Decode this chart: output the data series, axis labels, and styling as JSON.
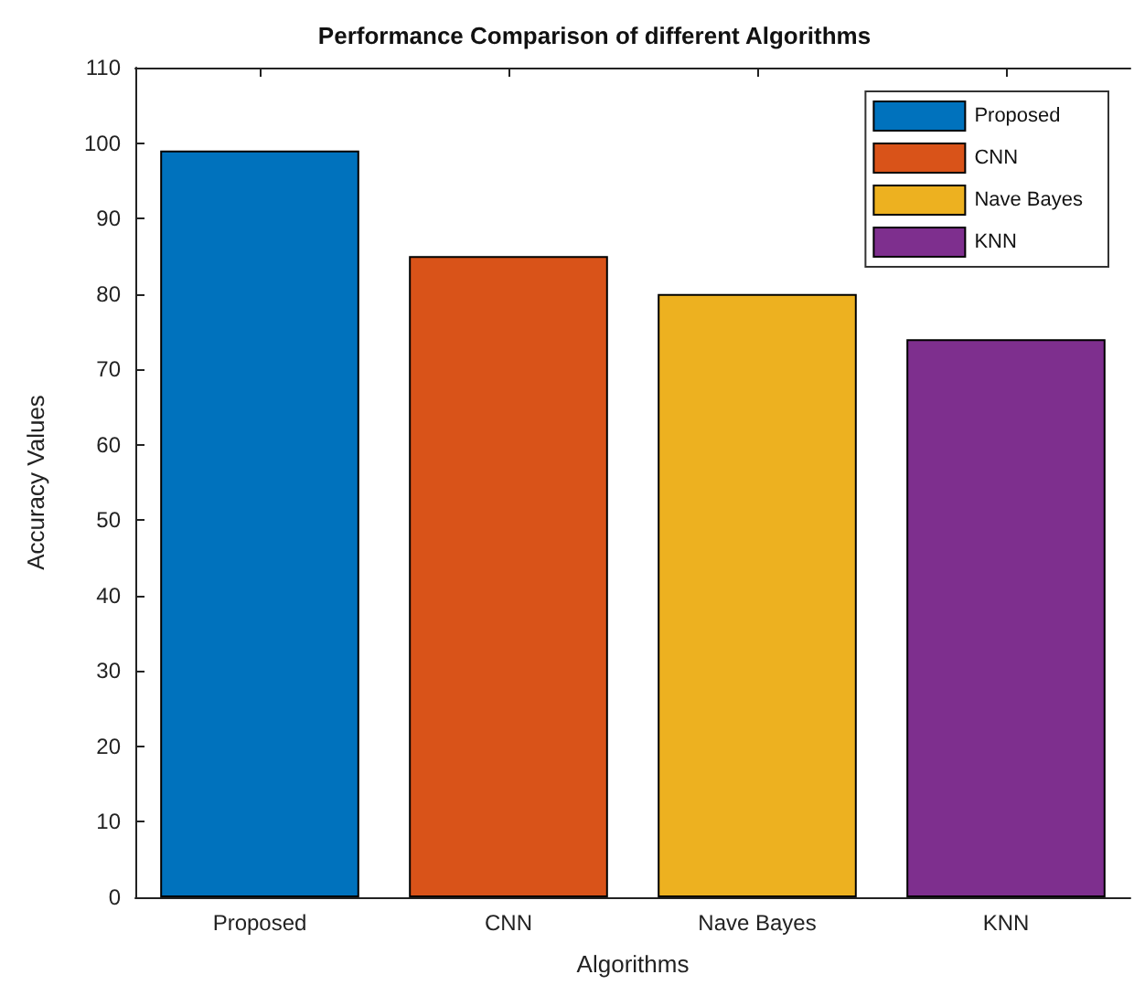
{
  "chart_data": {
    "type": "bar",
    "title": "Performance Comparison of different Algorithms",
    "xlabel": "Algorithms",
    "ylabel": "Accuracy Values",
    "categories": [
      "Proposed",
      "CNN",
      "Nave Bayes",
      "KNN"
    ],
    "series": [
      {
        "name": "Proposed",
        "color": "#0072bd",
        "values": [
          99,
          null,
          null,
          null
        ]
      },
      {
        "name": "CNN",
        "color": "#d95319",
        "values": [
          null,
          85,
          null,
          null
        ]
      },
      {
        "name": "Nave Bayes",
        "color": "#edb120",
        "values": [
          null,
          null,
          80,
          null
        ]
      },
      {
        "name": "KNN",
        "color": "#7e2f8e",
        "values": [
          null,
          null,
          null,
          74
        ]
      }
    ],
    "ylim": [
      0,
      110
    ],
    "yticks": [
      0,
      10,
      20,
      30,
      40,
      50,
      60,
      70,
      80,
      90,
      100,
      110
    ],
    "grid": false,
    "legend": "top right"
  }
}
